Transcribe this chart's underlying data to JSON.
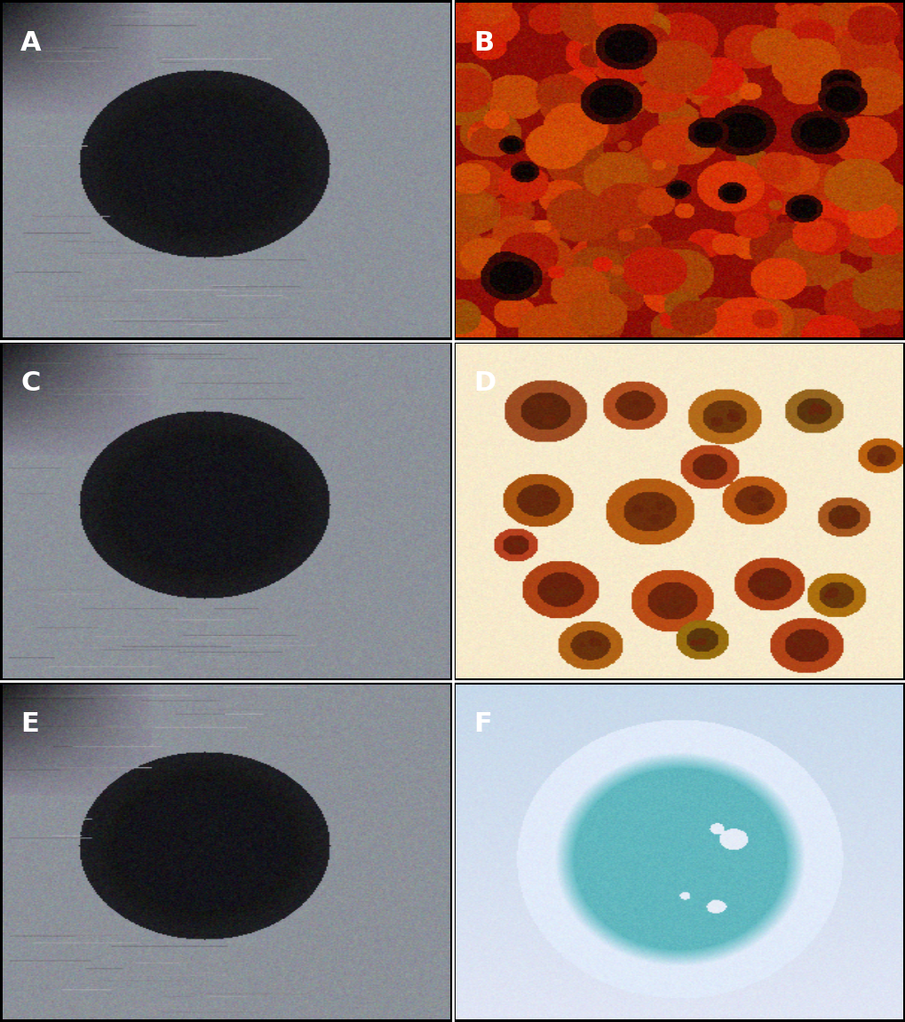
{
  "figure_width": 10.2,
  "figure_height": 11.51,
  "dpi": 100,
  "labels": [
    "A",
    "B",
    "C",
    "D",
    "E",
    "F"
  ],
  "label_color": "#ffffff",
  "label_fontsize": 22,
  "label_fontweight": "bold",
  "border_color": "#ffffff",
  "border_width": 2,
  "panel_bg_A": "#404040",
  "panel_bg_B": "#8b0000",
  "panel_bg_C": "#404040",
  "panel_bg_D": "#f5e6c8",
  "panel_bg_E": "#404040",
  "panel_bg_F": "#d0e8f0"
}
